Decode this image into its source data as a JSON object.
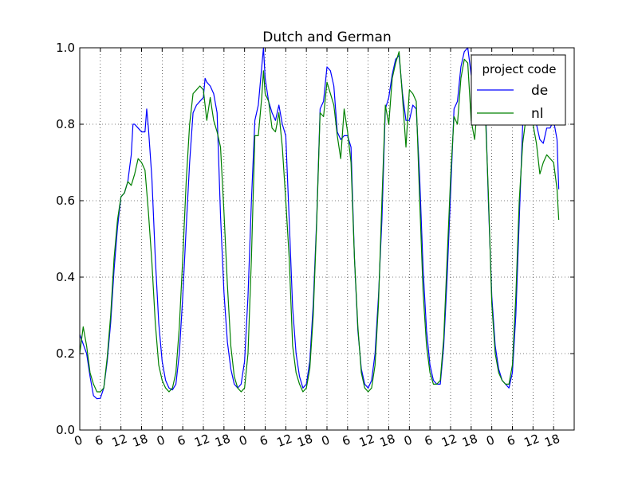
{
  "chart_data": {
    "type": "line",
    "title": "Dutch and German",
    "xlabel": "",
    "ylabel": "",
    "xlim": [
      0,
      144
    ],
    "ylim": [
      0.0,
      1.0
    ],
    "grid": true,
    "legend": {
      "placement": "top-right",
      "title": "project code"
    },
    "yticks": [
      {
        "value": 0.0,
        "label": "0.0"
      },
      {
        "value": 0.2,
        "label": "0.2"
      },
      {
        "value": 0.4,
        "label": "0.4"
      },
      {
        "value": 0.6,
        "label": "0.6"
      },
      {
        "value": 0.8,
        "label": "0.8"
      },
      {
        "value": 1.0,
        "label": "1.0"
      }
    ],
    "xticks": [
      {
        "value": 0,
        "label": "0"
      },
      {
        "value": 6,
        "label": "6"
      },
      {
        "value": 12,
        "label": "12"
      },
      {
        "value": 18,
        "label": "18"
      },
      {
        "value": 24,
        "label": "0"
      },
      {
        "value": 30,
        "label": "6"
      },
      {
        "value": 36,
        "label": "12"
      },
      {
        "value": 42,
        "label": "18"
      },
      {
        "value": 48,
        "label": "0"
      },
      {
        "value": 54,
        "label": "6"
      },
      {
        "value": 60,
        "label": "12"
      },
      {
        "value": 66,
        "label": "18"
      },
      {
        "value": 72,
        "label": "0"
      },
      {
        "value": 78,
        "label": "6"
      },
      {
        "value": 84,
        "label": "12"
      },
      {
        "value": 90,
        "label": "18"
      },
      {
        "value": 96,
        "label": "0"
      },
      {
        "value": 102,
        "label": "6"
      },
      {
        "value": 108,
        "label": "12"
      },
      {
        "value": 114,
        "label": "18"
      },
      {
        "value": 120,
        "label": "0"
      },
      {
        "value": 126,
        "label": "6"
      },
      {
        "value": 132,
        "label": "12"
      },
      {
        "value": 138,
        "label": "18"
      }
    ],
    "series": [
      {
        "name": "de",
        "color": "#0000ff",
        "points": [
          [
            0,
            0.25
          ],
          [
            2,
            0.2
          ],
          [
            3,
            0.14
          ],
          [
            4,
            0.09
          ],
          [
            5,
            0.082
          ],
          [
            6,
            0.083
          ],
          [
            7,
            0.11
          ],
          [
            8,
            0.18
          ],
          [
            9,
            0.28
          ],
          [
            10,
            0.42
          ],
          [
            11,
            0.53
          ],
          [
            12,
            0.61
          ],
          [
            13,
            0.62
          ],
          [
            14,
            0.65
          ],
          [
            15,
            0.72
          ],
          [
            15.5,
            0.8
          ],
          [
            16,
            0.8
          ],
          [
            17,
            0.79
          ],
          [
            18,
            0.78
          ],
          [
            19,
            0.78
          ],
          [
            19.5,
            0.84
          ],
          [
            20,
            0.79
          ],
          [
            21,
            0.66
          ],
          [
            22,
            0.45
          ],
          [
            23,
            0.28
          ],
          [
            24,
            0.18
          ],
          [
            25,
            0.13
          ],
          [
            26,
            0.11
          ],
          [
            27,
            0.105
          ],
          [
            28,
            0.12
          ],
          [
            29,
            0.2
          ],
          [
            30,
            0.35
          ],
          [
            31,
            0.53
          ],
          [
            32,
            0.7
          ],
          [
            33,
            0.83
          ],
          [
            34,
            0.85
          ],
          [
            35,
            0.86
          ],
          [
            36,
            0.87
          ],
          [
            36.5,
            0.92
          ],
          [
            37,
            0.91
          ],
          [
            38,
            0.9
          ],
          [
            39,
            0.88
          ],
          [
            40,
            0.83
          ],
          [
            41,
            0.56
          ],
          [
            42,
            0.36
          ],
          [
            43,
            0.23
          ],
          [
            44,
            0.16
          ],
          [
            45,
            0.12
          ],
          [
            46,
            0.11
          ],
          [
            47,
            0.12
          ],
          [
            48,
            0.18
          ],
          [
            49,
            0.35
          ],
          [
            50,
            0.6
          ],
          [
            51,
            0.81
          ],
          [
            52,
            0.85
          ],
          [
            53,
            0.95
          ],
          [
            53.5,
            1.0
          ],
          [
            54,
            0.92
          ],
          [
            55,
            0.86
          ],
          [
            56,
            0.83
          ],
          [
            57,
            0.81
          ],
          [
            58,
            0.85
          ],
          [
            59,
            0.8
          ],
          [
            60,
            0.77
          ],
          [
            61,
            0.55
          ],
          [
            62,
            0.32
          ],
          [
            63,
            0.2
          ],
          [
            64,
            0.14
          ],
          [
            65,
            0.11
          ],
          [
            66,
            0.12
          ],
          [
            67,
            0.18
          ],
          [
            68,
            0.33
          ],
          [
            69,
            0.55
          ],
          [
            70,
            0.84
          ],
          [
            71,
            0.86
          ],
          [
            72,
            0.95
          ],
          [
            73,
            0.94
          ],
          [
            74,
            0.9
          ],
          [
            75,
            0.78
          ],
          [
            76,
            0.76
          ],
          [
            77,
            0.77
          ],
          [
            78,
            0.77
          ],
          [
            79,
            0.74
          ],
          [
            80,
            0.45
          ],
          [
            81,
            0.26
          ],
          [
            82,
            0.16
          ],
          [
            83,
            0.12
          ],
          [
            84,
            0.11
          ],
          [
            85,
            0.13
          ],
          [
            86,
            0.2
          ],
          [
            87,
            0.35
          ],
          [
            88,
            0.55
          ],
          [
            89,
            0.84
          ],
          [
            90,
            0.87
          ],
          [
            91,
            0.93
          ],
          [
            92,
            0.97
          ],
          [
            93,
            0.98
          ],
          [
            94,
            0.88
          ],
          [
            95,
            0.81
          ],
          [
            96,
            0.81
          ],
          [
            97,
            0.85
          ],
          [
            98,
            0.84
          ],
          [
            99,
            0.66
          ],
          [
            100,
            0.42
          ],
          [
            101,
            0.26
          ],
          [
            102,
            0.17
          ],
          [
            103,
            0.13
          ],
          [
            104,
            0.12
          ],
          [
            105,
            0.12
          ],
          [
            106,
            0.22
          ],
          [
            107,
            0.4
          ],
          [
            108,
            0.62
          ],
          [
            109,
            0.84
          ],
          [
            110,
            0.86
          ],
          [
            111,
            0.95
          ],
          [
            112,
            0.99
          ],
          [
            113,
            1.0
          ],
          [
            114,
            0.93
          ],
          [
            115,
            0.88
          ],
          [
            116,
            0.88
          ],
          [
            117,
            0.9
          ],
          [
            118,
            0.9
          ],
          [
            119,
            0.6
          ],
          [
            120,
            0.35
          ],
          [
            121,
            0.22
          ],
          [
            122,
            0.16
          ],
          [
            123,
            0.13
          ],
          [
            124,
            0.12
          ],
          [
            125,
            0.11
          ],
          [
            126,
            0.15
          ],
          [
            127,
            0.3
          ],
          [
            128,
            0.55
          ],
          [
            129,
            0.8
          ],
          [
            130,
            0.84
          ],
          [
            131,
            0.88
          ],
          [
            132,
            0.85
          ],
          [
            133,
            0.8
          ],
          [
            134,
            0.76
          ],
          [
            135,
            0.75
          ],
          [
            136,
            0.79
          ],
          [
            137,
            0.79
          ],
          [
            138,
            0.81
          ],
          [
            139,
            0.76
          ],
          [
            139.5,
            0.63
          ]
        ]
      },
      {
        "name": "nl",
        "color": "#008000",
        "points": [
          [
            0,
            0.2
          ],
          [
            1,
            0.27
          ],
          [
            2,
            0.22
          ],
          [
            3,
            0.15
          ],
          [
            4,
            0.12
          ],
          [
            5,
            0.1
          ],
          [
            6,
            0.1
          ],
          [
            7,
            0.11
          ],
          [
            8,
            0.19
          ],
          [
            9,
            0.3
          ],
          [
            10,
            0.45
          ],
          [
            11,
            0.55
          ],
          [
            12,
            0.61
          ],
          [
            13,
            0.62
          ],
          [
            14,
            0.65
          ],
          [
            15,
            0.64
          ],
          [
            16,
            0.67
          ],
          [
            17,
            0.71
          ],
          [
            18,
            0.7
          ],
          [
            19,
            0.68
          ],
          [
            20,
            0.57
          ],
          [
            21,
            0.44
          ],
          [
            22,
            0.28
          ],
          [
            23,
            0.17
          ],
          [
            24,
            0.13
          ],
          [
            25,
            0.11
          ],
          [
            26,
            0.1
          ],
          [
            27,
            0.11
          ],
          [
            28,
            0.15
          ],
          [
            29,
            0.27
          ],
          [
            30,
            0.45
          ],
          [
            31,
            0.65
          ],
          [
            32,
            0.8
          ],
          [
            33,
            0.88
          ],
          [
            34,
            0.89
          ],
          [
            35,
            0.9
          ],
          [
            36,
            0.89
          ],
          [
            37,
            0.81
          ],
          [
            38,
            0.87
          ],
          [
            39,
            0.81
          ],
          [
            40,
            0.78
          ],
          [
            41,
            0.74
          ],
          [
            42,
            0.57
          ],
          [
            43,
            0.38
          ],
          [
            44,
            0.22
          ],
          [
            45,
            0.14
          ],
          [
            46,
            0.11
          ],
          [
            47,
            0.1
          ],
          [
            48,
            0.11
          ],
          [
            49,
            0.2
          ],
          [
            50,
            0.45
          ],
          [
            51,
            0.77
          ],
          [
            52,
            0.77
          ],
          [
            53,
            0.87
          ],
          [
            53.5,
            0.94
          ],
          [
            54,
            0.88
          ],
          [
            55,
            0.86
          ],
          [
            56,
            0.79
          ],
          [
            57,
            0.78
          ],
          [
            58,
            0.83
          ],
          [
            59,
            0.74
          ],
          [
            60,
            0.6
          ],
          [
            61,
            0.45
          ],
          [
            62,
            0.22
          ],
          [
            63,
            0.15
          ],
          [
            64,
            0.12
          ],
          [
            65,
            0.1
          ],
          [
            66,
            0.11
          ],
          [
            67,
            0.16
          ],
          [
            68,
            0.3
          ],
          [
            69,
            0.54
          ],
          [
            70,
            0.83
          ],
          [
            71,
            0.82
          ],
          [
            72,
            0.91
          ],
          [
            73,
            0.88
          ],
          [
            74,
            0.85
          ],
          [
            75,
            0.77
          ],
          [
            76,
            0.71
          ],
          [
            77,
            0.84
          ],
          [
            78,
            0.78
          ],
          [
            79,
            0.7
          ],
          [
            80,
            0.45
          ],
          [
            81,
            0.27
          ],
          [
            82,
            0.15
          ],
          [
            83,
            0.11
          ],
          [
            84,
            0.1
          ],
          [
            85,
            0.11
          ],
          [
            86,
            0.17
          ],
          [
            87,
            0.33
          ],
          [
            88,
            0.6
          ],
          [
            89,
            0.85
          ],
          [
            90,
            0.8
          ],
          [
            91,
            0.92
          ],
          [
            92,
            0.96
          ],
          [
            93,
            0.99
          ],
          [
            94,
            0.87
          ],
          [
            95,
            0.74
          ],
          [
            96,
            0.89
          ],
          [
            97,
            0.88
          ],
          [
            98,
            0.86
          ],
          [
            99,
            0.6
          ],
          [
            100,
            0.36
          ],
          [
            101,
            0.22
          ],
          [
            102,
            0.15
          ],
          [
            103,
            0.12
          ],
          [
            104,
            0.12
          ],
          [
            105,
            0.13
          ],
          [
            106,
            0.24
          ],
          [
            107,
            0.45
          ],
          [
            108,
            0.66
          ],
          [
            109,
            0.82
          ],
          [
            110,
            0.8
          ],
          [
            111,
            0.92
          ],
          [
            112,
            0.97
          ],
          [
            113,
            0.96
          ],
          [
            114,
            0.81
          ],
          [
            115,
            0.76
          ],
          [
            116,
            0.87
          ],
          [
            117,
            0.85
          ],
          [
            118,
            0.86
          ],
          [
            119,
            0.62
          ],
          [
            120,
            0.33
          ],
          [
            121,
            0.2
          ],
          [
            122,
            0.15
          ],
          [
            123,
            0.13
          ],
          [
            124,
            0.12
          ],
          [
            125,
            0.12
          ],
          [
            126,
            0.17
          ],
          [
            127,
            0.35
          ],
          [
            128,
            0.6
          ],
          [
            129,
            0.75
          ],
          [
            130,
            0.82
          ],
          [
            131,
            0.85
          ],
          [
            132,
            0.8
          ],
          [
            133,
            0.75
          ],
          [
            134,
            0.67
          ],
          [
            135,
            0.7
          ],
          [
            136,
            0.72
          ],
          [
            137,
            0.71
          ],
          [
            138,
            0.7
          ],
          [
            139,
            0.63
          ],
          [
            139.5,
            0.55
          ]
        ]
      }
    ]
  }
}
